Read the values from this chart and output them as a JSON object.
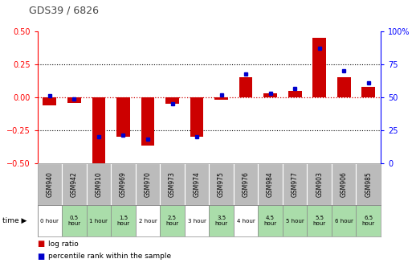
{
  "title": "GDS39 / 6826",
  "samples": [
    "GSM940",
    "GSM942",
    "GSM910",
    "GSM969",
    "GSM970",
    "GSM973",
    "GSM974",
    "GSM975",
    "GSM976",
    "GSM984",
    "GSM977",
    "GSM903",
    "GSM906",
    "GSM985"
  ],
  "time_labels": [
    "0 hour",
    "0.5\nhour",
    "1 hour",
    "1.5\nhour",
    "2 hour",
    "2.5\nhour",
    "3 hour",
    "3.5\nhour",
    "4 hour",
    "4.5\nhour",
    "5 hour",
    "5.5\nhour",
    "6 hour",
    "6.5\nhour"
  ],
  "time_bg": [
    "white",
    "light",
    "light",
    "light",
    "white",
    "light",
    "white",
    "light",
    "white",
    "light",
    "light",
    "light",
    "light",
    "light"
  ],
  "log_ratio": [
    -0.06,
    -0.04,
    -0.5,
    -0.3,
    -0.37,
    -0.05,
    -0.3,
    -0.02,
    0.15,
    0.03,
    0.05,
    0.45,
    0.15,
    0.08
  ],
  "percentile": [
    51,
    49,
    20,
    21,
    18,
    45,
    20,
    52,
    68,
    53,
    57,
    87,
    70,
    61
  ],
  "ylim_left": [
    -0.5,
    0.5
  ],
  "ylim_right": [
    0,
    100
  ],
  "yticks_left": [
    -0.5,
    -0.25,
    0,
    0.25,
    0.5
  ],
  "yticks_right": [
    0,
    25,
    50,
    75,
    100
  ],
  "bar_color": "#cc0000",
  "dot_color": "#0000cc",
  "bg_light": "#aaddaa",
  "bg_white": "#ffffff",
  "header_bg": "#bbbbbb",
  "zero_line_color": "#cc0000",
  "title_color": "#444444",
  "plot_bg": "#ffffff"
}
